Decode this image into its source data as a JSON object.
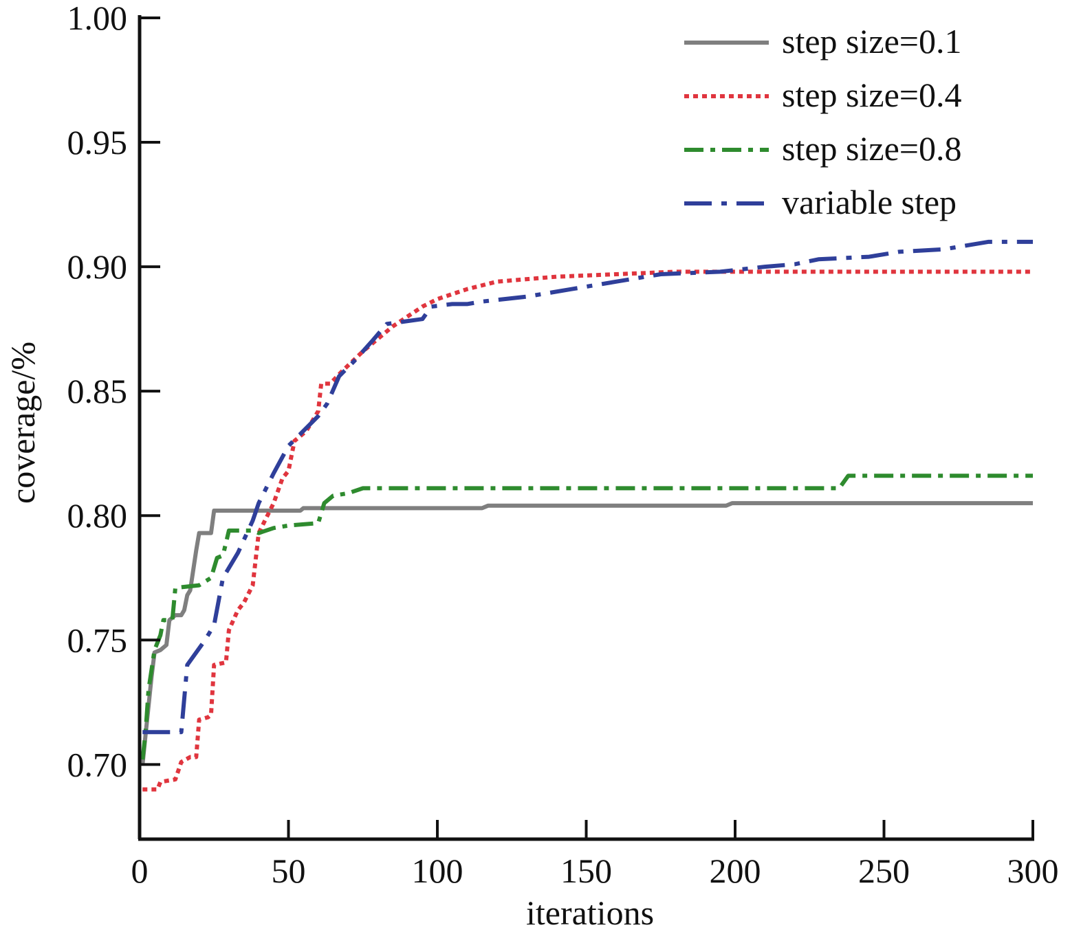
{
  "chart_data": {
    "type": "line",
    "title": "",
    "xlabel": "iterations",
    "ylabel": "coverage/%",
    "xlim": [
      0,
      300
    ],
    "ylim": [
      0.67,
      1.0
    ],
    "xticks": [
      0,
      50,
      100,
      150,
      200,
      250,
      300
    ],
    "xtick_labels": [
      "0",
      "50",
      "100",
      "150",
      "200",
      "250",
      "300"
    ],
    "yticks": [
      0.7,
      0.75,
      0.8,
      0.85,
      0.9,
      0.95,
      1.0
    ],
    "ytick_labels": [
      "0.70",
      "0.75",
      "0.80",
      "0.85",
      "0.90",
      "0.95",
      "1.00"
    ],
    "grid": false,
    "legend_position": "top-right",
    "series": [
      {
        "name": "step size=0.1",
        "color": "#7f7f7f",
        "dash": "solid",
        "points": [
          [
            1,
            0.7
          ],
          [
            2,
            0.712
          ],
          [
            4,
            0.735
          ],
          [
            5,
            0.745
          ],
          [
            7,
            0.746
          ],
          [
            9,
            0.748
          ],
          [
            10,
            0.758
          ],
          [
            12,
            0.76
          ],
          [
            14,
            0.76
          ],
          [
            15,
            0.762
          ],
          [
            16,
            0.768
          ],
          [
            17,
            0.77
          ],
          [
            19,
            0.786
          ],
          [
            20,
            0.793
          ],
          [
            24,
            0.793
          ],
          [
            25,
            0.802
          ],
          [
            54,
            0.802
          ],
          [
            55,
            0.803
          ],
          [
            115,
            0.803
          ],
          [
            117,
            0.804
          ],
          [
            197,
            0.804
          ],
          [
            199,
            0.805
          ],
          [
            300,
            0.805
          ]
        ]
      },
      {
        "name": "step size=0.4",
        "color": "#e0353e",
        "dash": "dotted",
        "points": [
          [
            1,
            0.69
          ],
          [
            6,
            0.69
          ],
          [
            7,
            0.693
          ],
          [
            12,
            0.694
          ],
          [
            14,
            0.701
          ],
          [
            17,
            0.703
          ],
          [
            19,
            0.703
          ],
          [
            20,
            0.718
          ],
          [
            23,
            0.719
          ],
          [
            24,
            0.72
          ],
          [
            25,
            0.74
          ],
          [
            29,
            0.741
          ],
          [
            30,
            0.754
          ],
          [
            33,
            0.762
          ],
          [
            35,
            0.765
          ],
          [
            38,
            0.772
          ],
          [
            40,
            0.793
          ],
          [
            45,
            0.805
          ],
          [
            48,
            0.815
          ],
          [
            50,
            0.818
          ],
          [
            52,
            0.83
          ],
          [
            56,
            0.834
          ],
          [
            60,
            0.842
          ],
          [
            61,
            0.853
          ],
          [
            64,
            0.853
          ],
          [
            68,
            0.858
          ],
          [
            75,
            0.866
          ],
          [
            85,
            0.876
          ],
          [
            95,
            0.884
          ],
          [
            100,
            0.887
          ],
          [
            110,
            0.891
          ],
          [
            120,
            0.894
          ],
          [
            140,
            0.896
          ],
          [
            160,
            0.897
          ],
          [
            180,
            0.898
          ],
          [
            300,
            0.898
          ]
        ]
      },
      {
        "name": "step size=0.8",
        "color": "#2e8b2e",
        "dash": "dashdot",
        "points": [
          [
            1,
            0.702
          ],
          [
            2,
            0.713
          ],
          [
            3,
            0.73
          ],
          [
            5,
            0.746
          ],
          [
            7,
            0.752
          ],
          [
            8,
            0.758
          ],
          [
            11,
            0.758
          ],
          [
            12,
            0.771
          ],
          [
            20,
            0.772
          ],
          [
            24,
            0.775
          ],
          [
            26,
            0.783
          ],
          [
            28,
            0.784
          ],
          [
            30,
            0.794
          ],
          [
            38,
            0.794
          ],
          [
            40,
            0.793
          ],
          [
            45,
            0.795
          ],
          [
            50,
            0.796
          ],
          [
            60,
            0.797
          ],
          [
            62,
            0.805
          ],
          [
            65,
            0.808
          ],
          [
            70,
            0.809
          ],
          [
            75,
            0.811
          ],
          [
            235,
            0.811
          ],
          [
            238,
            0.816
          ],
          [
            300,
            0.816
          ]
        ]
      },
      {
        "name": "variable step",
        "color": "#2f3f9a",
        "dash": "longdashdot",
        "points": [
          [
            1,
            0.713
          ],
          [
            14,
            0.713
          ],
          [
            16,
            0.74
          ],
          [
            22,
            0.75
          ],
          [
            25,
            0.756
          ],
          [
            28,
            0.775
          ],
          [
            33,
            0.785
          ],
          [
            38,
            0.798
          ],
          [
            40,
            0.805
          ],
          [
            45,
            0.817
          ],
          [
            50,
            0.828
          ],
          [
            55,
            0.834
          ],
          [
            60,
            0.84
          ],
          [
            63,
            0.845
          ],
          [
            67,
            0.856
          ],
          [
            72,
            0.862
          ],
          [
            78,
            0.87
          ],
          [
            83,
            0.877
          ],
          [
            95,
            0.879
          ],
          [
            98,
            0.884
          ],
          [
            105,
            0.885
          ],
          [
            110,
            0.885
          ],
          [
            115,
            0.886
          ],
          [
            130,
            0.888
          ],
          [
            145,
            0.891
          ],
          [
            160,
            0.894
          ],
          [
            175,
            0.897
          ],
          [
            195,
            0.898
          ],
          [
            210,
            0.9
          ],
          [
            220,
            0.901
          ],
          [
            228,
            0.903
          ],
          [
            245,
            0.904
          ],
          [
            255,
            0.906
          ],
          [
            270,
            0.907
          ],
          [
            285,
            0.91
          ],
          [
            300,
            0.91
          ]
        ]
      }
    ]
  }
}
